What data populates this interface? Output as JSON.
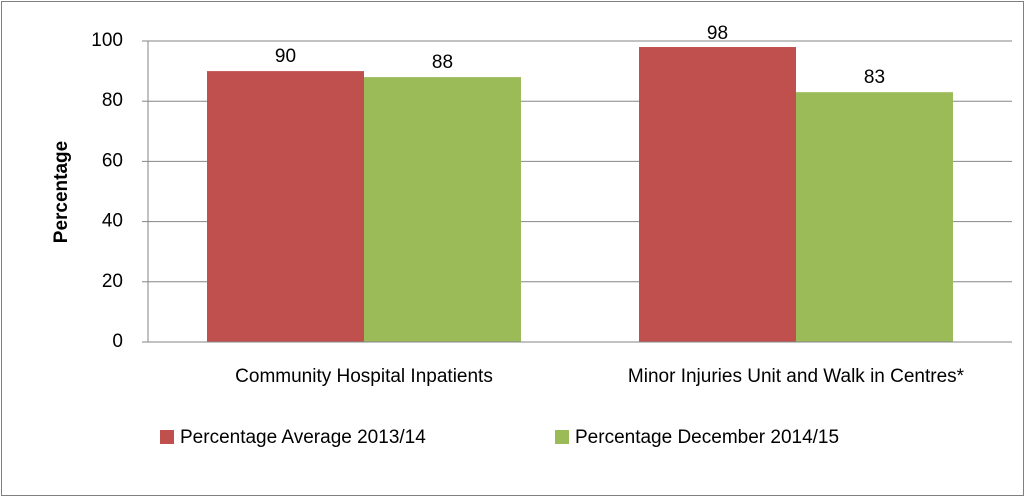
{
  "chart_data": {
    "type": "bar",
    "y_label": "Percentage",
    "categories": [
      "Community Hospital Inpatients",
      "Minor Injuries Unit and Walk in Centres*"
    ],
    "series": [
      {
        "name": "Percentage Average 2013/14",
        "color": "#c0504d",
        "values": [
          90,
          98
        ]
      },
      {
        "name": "Percentage December 2014/15",
        "color": "#9bbb59",
        "values": [
          88,
          83
        ]
      }
    ],
    "ylim": [
      0,
      100
    ],
    "yticks": [
      0,
      20,
      40,
      60,
      80,
      100
    ],
    "grid": true,
    "legend": "bottom"
  }
}
